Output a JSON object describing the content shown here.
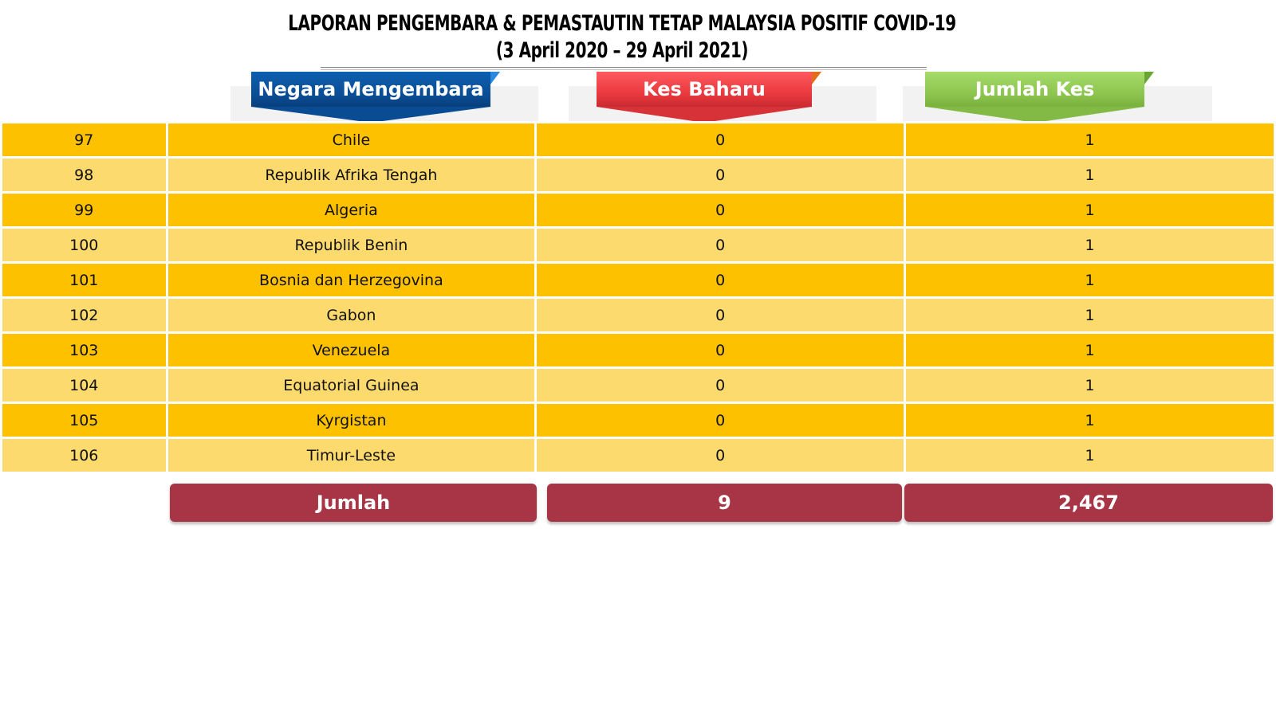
{
  "title": {
    "line1": "LAPORAN PENGEMBARA & PEMASTAUTIN TETAP MALAYSIA POSITIF COVID-19",
    "line2": "(3 April 2020 – 29 April  2021)"
  },
  "headers": {
    "country": "Negara Mengembara",
    "new_cases": "Kes Baharu",
    "total_cases": "Jumlah Kes"
  },
  "rows": [
    {
      "no": "97",
      "country": "Chile",
      "new": "0",
      "total": "1"
    },
    {
      "no": "98",
      "country": "Republik Afrika Tengah",
      "new": "0",
      "total": "1"
    },
    {
      "no": "99",
      "country": "Algeria",
      "new": "0",
      "total": "1"
    },
    {
      "no": "100",
      "country": "Republik Benin",
      "new": "0",
      "total": "1"
    },
    {
      "no": "101",
      "country": "Bosnia dan Herzegovina",
      "new": "0",
      "total": "1"
    },
    {
      "no": "102",
      "country": "Gabon",
      "new": "0",
      "total": "1"
    },
    {
      "no": "103",
      "country": "Venezuela",
      "new": "0",
      "total": "1"
    },
    {
      "no": "104",
      "country": "Equatorial Guinea",
      "new": "0",
      "total": "1"
    },
    {
      "no": "105",
      "country": "Kyrgistan",
      "new": "0",
      "total": "1"
    },
    {
      "no": "106",
      "country": "Timur-Leste",
      "new": "0",
      "total": "1"
    }
  ],
  "totals": {
    "label": "Jumlah",
    "new": "9",
    "total": "2,467"
  },
  "colors": {
    "row_dark": "#fdc100",
    "row_light": "#fdda6d",
    "header_blue": "#0a4c93",
    "header_red": "#e8383d",
    "header_green": "#8cc44e",
    "total_bg": "#a73545"
  }
}
